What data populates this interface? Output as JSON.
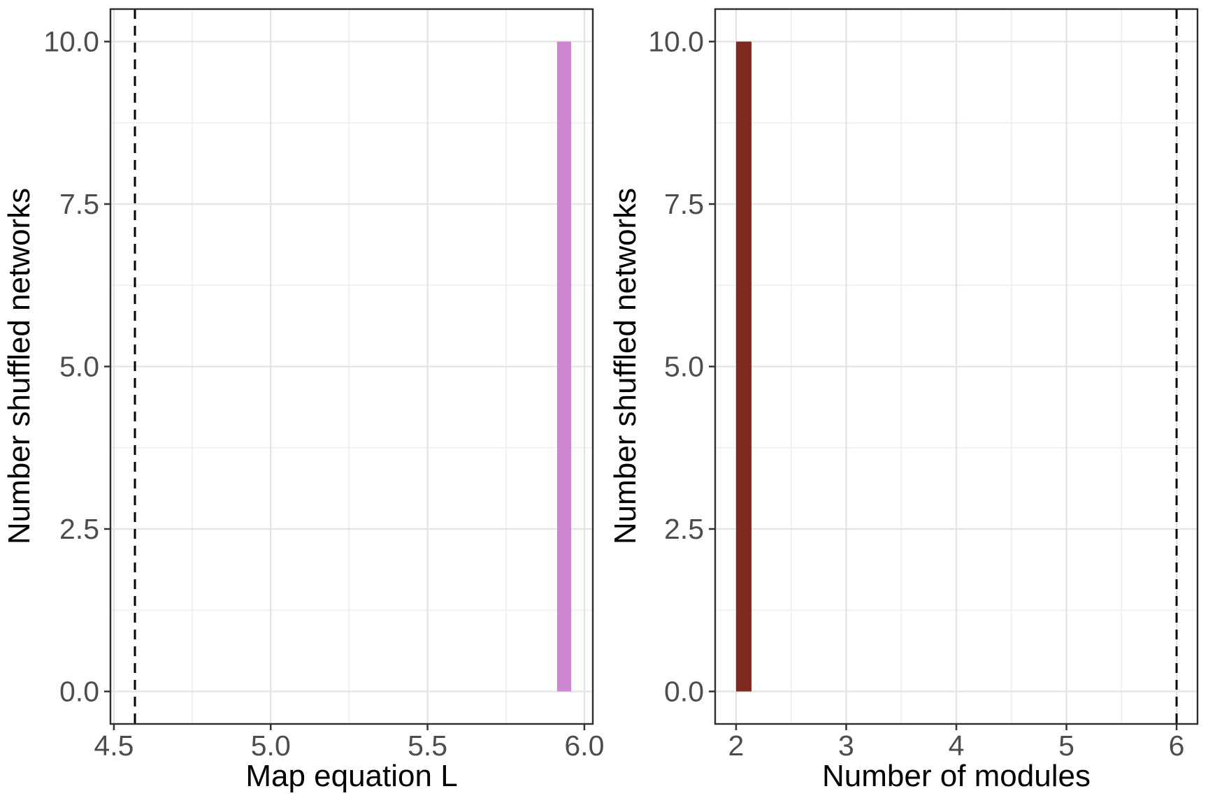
{
  "figure": {
    "name": "shuffled-network-histograms",
    "background": "#FFFFFF"
  },
  "style": {
    "panel_background": "#FFFFFF",
    "panel_border": "#2E2E2E",
    "grid_major_color": "#E3E3E3",
    "grid_minor_color": "#EFEFEF",
    "tick_mark_color": "#333333",
    "tick_label_color": "#4D4D4D",
    "axis_title_color": "#000000"
  },
  "chart_data": [
    {
      "type": "bar",
      "subtype": "histogram",
      "panel": "left",
      "xlabel": "Map equation L",
      "ylabel": "Number shuffled networks",
      "xlim": [
        4.489,
        6.027
      ],
      "ylim": [
        -0.5,
        10.5
      ],
      "x_ticks": [
        4.5,
        5.0,
        5.5,
        6.0
      ],
      "x_tick_labels": [
        "4.5",
        "5.0",
        "5.5",
        "6.0"
      ],
      "x_minor_ticks": [
        4.75,
        5.25,
        5.75
      ],
      "y_ticks": [
        0,
        2.5,
        5,
        7.5,
        10
      ],
      "y_tick_labels": [
        "0.0",
        "2.5",
        "5.0",
        "7.5",
        "10.0"
      ],
      "y_minor_ticks": [
        1.25,
        3.75,
        6.25,
        8.75
      ],
      "bars": [
        {
          "x_start": 5.913,
          "x_end": 5.958,
          "count": 10
        }
      ],
      "bar_color": "#CD86D1",
      "vline": {
        "x": 4.567,
        "style": "dashed",
        "color": "#000000"
      },
      "grid": true,
      "legend": "none"
    },
    {
      "type": "bar",
      "subtype": "histogram",
      "panel": "right",
      "xlabel": "Number of modules",
      "ylabel": "Number shuffled networks",
      "xlim": [
        1.81,
        6.19
      ],
      "ylim": [
        -0.5,
        10.5
      ],
      "x_ticks": [
        2,
        3,
        4,
        5,
        6
      ],
      "x_tick_labels": [
        "2",
        "3",
        "4",
        "5",
        "6"
      ],
      "x_minor_ticks": [
        2.5,
        3.5,
        4.5,
        5.5
      ],
      "y_ticks": [
        0,
        2.5,
        5,
        7.5,
        10
      ],
      "y_tick_labels": [
        "0.0",
        "2.5",
        "5.0",
        "7.5",
        "10.0"
      ],
      "y_minor_ticks": [
        1.25,
        3.75,
        6.25,
        8.75
      ],
      "bars": [
        {
          "x_start": 2.0,
          "x_end": 2.14,
          "count": 10
        }
      ],
      "bar_color": "#7E2A20",
      "vline": {
        "x": 6.0,
        "style": "dashed",
        "color": "#000000"
      },
      "grid": true,
      "legend": "none"
    }
  ]
}
